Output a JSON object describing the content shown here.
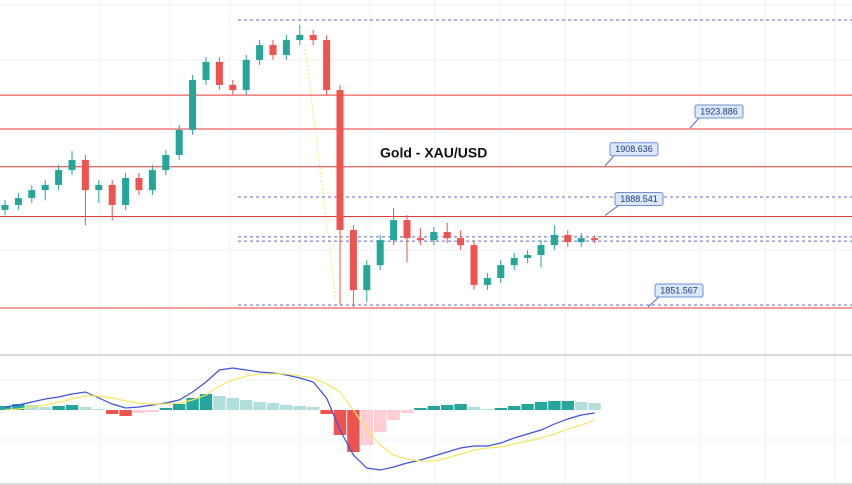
{
  "chart_data": {
    "type": "candlestick",
    "title": "Gold - XAU/USD",
    "ylim": [
      1832.6,
      1976.0
    ],
    "up_color": "#26a69a",
    "down_color": "#ef5350",
    "ohlc": [
      [
        1891.2,
        1895.2,
        1889.2,
        1893.2
      ],
      [
        1893.2,
        1898.0,
        1891.2,
        1896.0
      ],
      [
        1896.0,
        1901.2,
        1894.0,
        1899.2
      ],
      [
        1899.2,
        1903.3,
        1895.0,
        1901.3
      ],
      [
        1901.3,
        1909.3,
        1899.3,
        1907.3
      ],
      [
        1907.3,
        1915.0,
        1905.3,
        1911.4
      ],
      [
        1911.4,
        1913.4,
        1885.0,
        1899.2
      ],
      [
        1899.2,
        1903.3,
        1894.0,
        1901.3
      ],
      [
        1901.3,
        1903.3,
        1887.0,
        1893.2
      ],
      [
        1893.2,
        1906.1,
        1891.2,
        1904.1
      ],
      [
        1904.1,
        1906.1,
        1897.2,
        1899.2
      ],
      [
        1899.2,
        1909.3,
        1897.2,
        1907.3
      ],
      [
        1907.3,
        1915.4,
        1905.3,
        1913.4
      ],
      [
        1913.4,
        1925.5,
        1911.4,
        1923.5
      ],
      [
        1923.5,
        1945.7,
        1921.5,
        1943.7
      ],
      [
        1943.7,
        1953.0,
        1941.7,
        1951.0
      ],
      [
        1951.0,
        1953.0,
        1939.7,
        1941.7
      ],
      [
        1941.7,
        1943.7,
        1937.6,
        1939.6
      ],
      [
        1939.6,
        1953.8,
        1937.6,
        1951.8
      ],
      [
        1951.8,
        1959.8,
        1949.8,
        1957.8
      ],
      [
        1957.8,
        1959.8,
        1951.8,
        1953.8
      ],
      [
        1953.8,
        1961.8,
        1951.8,
        1959.8
      ],
      [
        1959.8,
        1966.0,
        1957.8,
        1961.9
      ],
      [
        1961.9,
        1963.9,
        1957.8,
        1959.8
      ],
      [
        1959.8,
        1961.8,
        1937.6,
        1939.6
      ],
      [
        1939.6,
        1941.6,
        1853.0,
        1883.1
      ],
      [
        1883.1,
        1885.1,
        1852.0,
        1858.8
      ],
      [
        1858.8,
        1870.9,
        1854.0,
        1868.9
      ],
      [
        1868.9,
        1881.0,
        1866.9,
        1879.0
      ],
      [
        1879.0,
        1892.0,
        1877.0,
        1887.1
      ],
      [
        1887.1,
        1889.1,
        1870.0,
        1879.8
      ],
      [
        1879.8,
        1884.0,
        1877.0,
        1879.0
      ],
      [
        1879.0,
        1884.3,
        1877.0,
        1882.3
      ],
      [
        1882.3,
        1886.0,
        1877.8,
        1879.8
      ],
      [
        1879.8,
        1883.0,
        1875.0,
        1877.0
      ],
      [
        1877.0,
        1879.0,
        1858.9,
        1860.9
      ],
      [
        1860.9,
        1865.7,
        1858.9,
        1863.7
      ],
      [
        1863.7,
        1870.9,
        1861.7,
        1868.9
      ],
      [
        1868.9,
        1873.8,
        1866.9,
        1871.8
      ],
      [
        1871.8,
        1875.0,
        1869.8,
        1873.0
      ],
      [
        1873.0,
        1879.0,
        1868.0,
        1877.0
      ],
      [
        1877.0,
        1885.0,
        1875.0,
        1881.1
      ],
      [
        1881.1,
        1883.1,
        1876.2,
        1878.2
      ],
      [
        1878.2,
        1881.8,
        1876.2,
        1879.8
      ],
      [
        1879.8,
        1881.0,
        1877.8,
        1879.0
      ]
    ],
    "levels": [
      {
        "value": 1937.6,
        "style": "solid"
      },
      {
        "value": 1923.886,
        "label": "1923.886",
        "style": "solid"
      },
      {
        "value": 1908.636,
        "label": "1908.636",
        "style": "solid"
      },
      {
        "value": 1888.541,
        "label": "1888.541",
        "style": "solid"
      },
      {
        "value": 1851.567,
        "label": "1851.567",
        "style": "solid"
      },
      {
        "value": 1967.9,
        "style": "dashed"
      },
      {
        "value": 1896.4,
        "style": "dashed"
      },
      {
        "value": 1880.3,
        "style": "dashed"
      },
      {
        "value": 1878.6,
        "style": "dashed"
      },
      {
        "value": 1852.8,
        "style": "dashed"
      }
    ],
    "macd": {
      "ylim": [
        -75,
        55
      ],
      "histogram": [
        4,
        6,
        5,
        3,
        4,
        5,
        3,
        1,
        -4,
        -6,
        -3,
        -2,
        2,
        6,
        12,
        16,
        14,
        12,
        10,
        8,
        7,
        5,
        4,
        3,
        -4,
        -25,
        -42,
        -35,
        -22,
        -10,
        -3,
        2,
        4,
        5,
        6,
        3,
        1,
        2,
        4,
        6,
        8,
        9,
        9,
        8,
        7
      ],
      "hist_colors": [
        "#26a69a",
        "#b2dfdb",
        "#ef5350",
        "#ffcdd2"
      ],
      "series": [
        {
          "color": "#3f51e0",
          "values": [
            3,
            5,
            8,
            11,
            13,
            16,
            18,
            12,
            6,
            2,
            3,
            5,
            7,
            10,
            18,
            28,
            40,
            42,
            40,
            38,
            37,
            35,
            32,
            28,
            12,
            -20,
            -45,
            -58,
            -60,
            -57,
            -53,
            -50,
            -46,
            -42,
            -38,
            -36,
            -36,
            -33,
            -28,
            -24,
            -20,
            -14,
            -9,
            -5,
            -3
          ]
        },
        {
          "color": "#f5e663",
          "values": [
            0,
            1,
            3,
            5,
            8,
            11,
            14,
            14,
            12,
            9,
            7,
            6,
            6,
            7,
            10,
            15,
            24,
            30,
            34,
            36,
            36,
            36,
            34,
            32,
            26,
            18,
            0,
            -20,
            -35,
            -45,
            -49,
            -51,
            -51,
            -48,
            -44,
            -40,
            -38,
            -37,
            -34,
            -31,
            -28,
            -24,
            -19,
            -15,
            -10
          ]
        }
      ]
    }
  }
}
